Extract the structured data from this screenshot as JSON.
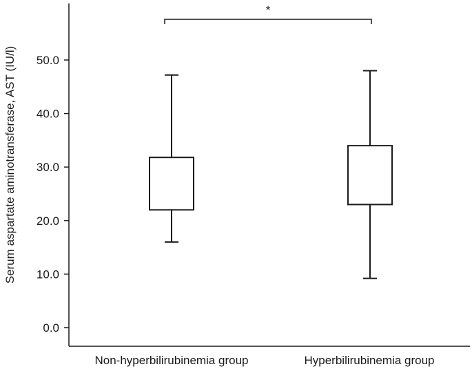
{
  "chart_data": {
    "type": "box",
    "ylabel": "Serum aspartate aminotransferase, AST (IU/l)",
    "xlabel": "",
    "ylim": [
      -3.2,
      63
    ],
    "yticks": [
      0,
      10,
      20,
      30,
      40,
      50
    ],
    "ytick_labels": [
      "0.0",
      "10.0",
      "20.0",
      "30.0",
      "40.0",
      "50.0"
    ],
    "categories": [
      "Non-hyperbilirubinemia group",
      "Hyperbilirubinemia group"
    ],
    "boxes": [
      {
        "category": "Non-hyperbilirubinemia group",
        "whisker_low": 16.0,
        "q1": 22.0,
        "q3": 31.8,
        "whisker_high": 47.2
      },
      {
        "category": "Hyperbilirubinemia group",
        "whisker_low": 9.2,
        "q1": 23.0,
        "q3": 34.0,
        "whisker_high": 48.0
      }
    ],
    "significance": {
      "between": [
        0,
        1
      ],
      "label": "*"
    },
    "grid": false,
    "legend": "none"
  }
}
